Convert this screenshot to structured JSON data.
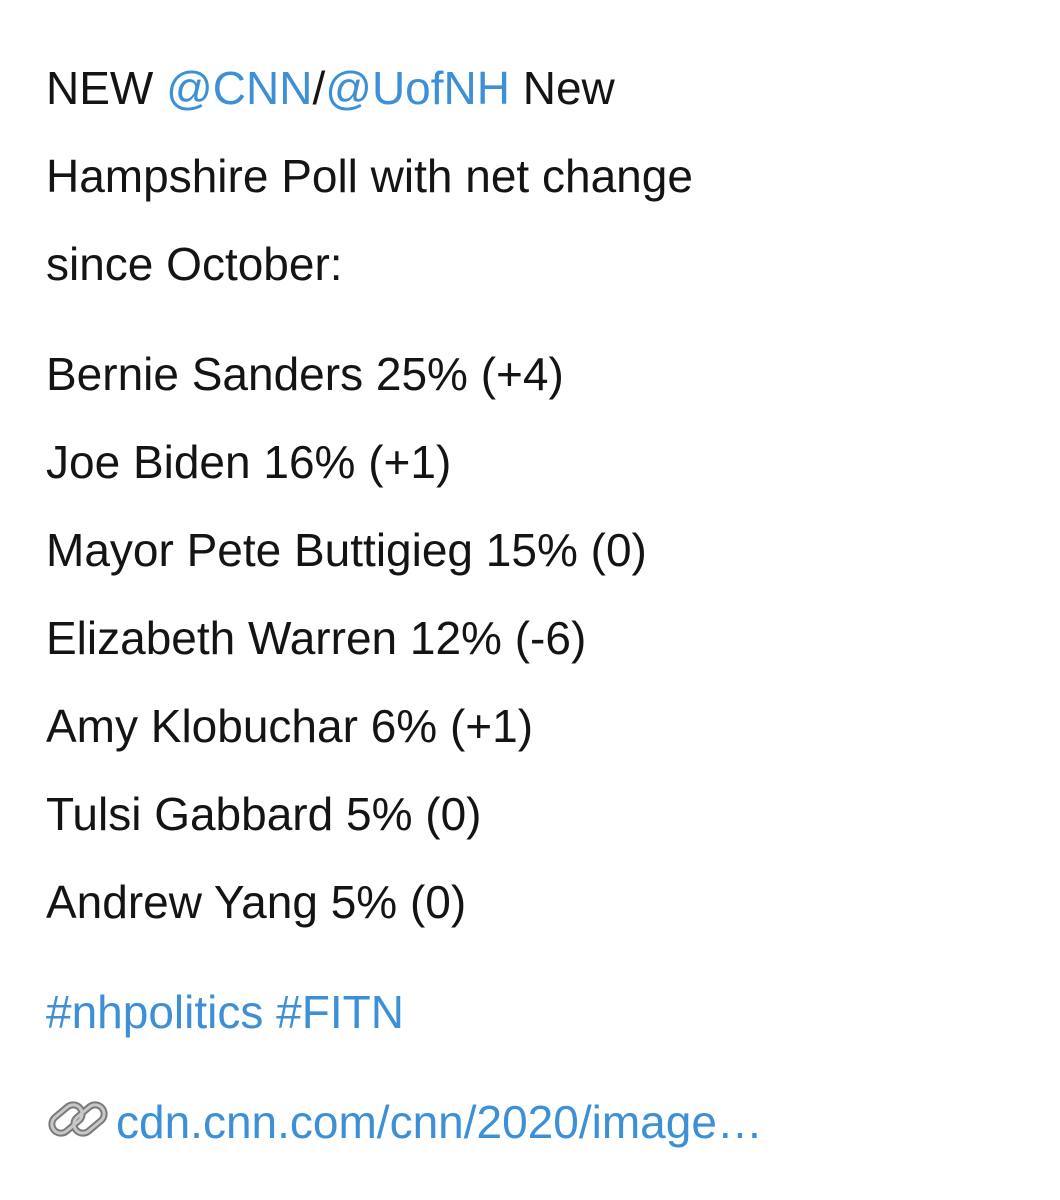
{
  "tweet": {
    "intro_line1": [
      {
        "text": "NEW "
      },
      {
        "text": "@CNN",
        "link": true
      },
      {
        "text": "/"
      },
      {
        "text": "@UofNH",
        "link": true
      },
      {
        "text": " New"
      }
    ],
    "intro_rest": [
      "Hampshire Poll with net change",
      "since October:"
    ],
    "poll": [
      "Bernie Sanders 25% (+4)",
      "Joe Biden 16% (+1)",
      "Mayor Pete Buttigieg 15% (0)",
      "Elizabeth Warren 12% (-6)",
      "Amy Klobuchar 6% (+1)",
      "Tulsi Gabbard 5% (0)",
      "Andrew Yang 5% (0)"
    ],
    "hashtags": [
      "#nhpolitics",
      "#FITN"
    ],
    "link": "cdn.cnn.com/cnn/2020/image…"
  }
}
